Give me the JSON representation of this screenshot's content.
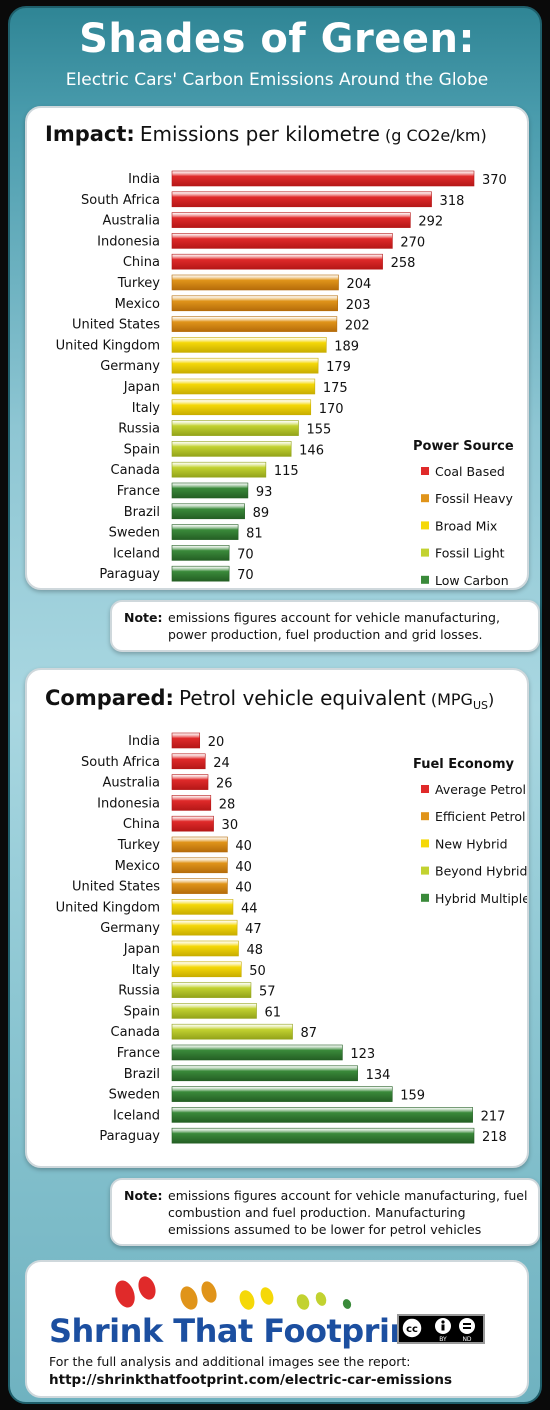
{
  "header": {
    "title": "Shades of Green:",
    "subtitle": "Electric Cars' Carbon Emissions Around the Globe"
  },
  "colors": {
    "red": "#e02a2a",
    "orange": "#e0941a",
    "yellow": "#f5d808",
    "lime": "#c2d230",
    "green": "#3a8a3a"
  },
  "chart_data": [
    {
      "type": "bar",
      "title_bold": "Impact:",
      "title": "Emissions per kilometre",
      "unit": "(g CO2e/km)",
      "categories": [
        "India",
        "South Africa",
        "Australia",
        "Indonesia",
        "China",
        "Turkey",
        "Mexico",
        "United States",
        "United Kingdom",
        "Germany",
        "Japan",
        "Italy",
        "Russia",
        "Spain",
        "Canada",
        "France",
        "Brazil",
        "Sweden",
        "Iceland",
        "Paraguay"
      ],
      "values": [
        370,
        318,
        292,
        270,
        258,
        204,
        203,
        202,
        189,
        179,
        175,
        170,
        155,
        146,
        115,
        93,
        89,
        81,
        70,
        70
      ],
      "groups": [
        "red",
        "red",
        "red",
        "red",
        "red",
        "orange",
        "orange",
        "orange",
        "yellow",
        "yellow",
        "yellow",
        "yellow",
        "lime",
        "lime",
        "lime",
        "green",
        "green",
        "green",
        "green",
        "green"
      ],
      "legend_title": "Power Source",
      "legend": [
        {
          "label": "Coal Based",
          "color": "red"
        },
        {
          "label": "Fossil Heavy",
          "color": "orange"
        },
        {
          "label": "Broad Mix",
          "color": "yellow"
        },
        {
          "label": "Fossil Light",
          "color": "lime"
        },
        {
          "label": "Low Carbon",
          "color": "green"
        }
      ],
      "xlim": [
        0,
        370
      ]
    },
    {
      "type": "bar",
      "title_bold": "Compared:",
      "title": "Petrol vehicle equivalent",
      "unit_main": "(MPG",
      "unit_sub": "US",
      "unit_end": ")",
      "categories": [
        "India",
        "South Africa",
        "Australia",
        "Indonesia",
        "China",
        "Turkey",
        "Mexico",
        "United States",
        "United Kingdom",
        "Germany",
        "Japan",
        "Italy",
        "Russia",
        "Spain",
        "Canada",
        "France",
        "Brazil",
        "Sweden",
        "Iceland",
        "Paraguay"
      ],
      "values": [
        20,
        24,
        26,
        28,
        30,
        40,
        40,
        40,
        44,
        47,
        48,
        50,
        57,
        61,
        87,
        123,
        134,
        159,
        217,
        218
      ],
      "groups": [
        "red",
        "red",
        "red",
        "red",
        "red",
        "orange",
        "orange",
        "orange",
        "yellow",
        "yellow",
        "yellow",
        "yellow",
        "lime",
        "lime",
        "lime",
        "green",
        "green",
        "green",
        "green",
        "green"
      ],
      "legend_title": "Fuel Economy",
      "legend": [
        {
          "label": "Average Petrol",
          "color": "red"
        },
        {
          "label": "Efficient Petrol",
          "color": "orange"
        },
        {
          "label": "New Hybrid",
          "color": "yellow"
        },
        {
          "label": "Beyond Hybrid",
          "color": "lime"
        },
        {
          "label": "Hybrid Multiples",
          "color": "green"
        }
      ],
      "xlim": [
        0,
        218
      ]
    }
  ],
  "notes": [
    {
      "label": "Note:",
      "text": "emissions figures account for vehicle manufacturing, power production, fuel production and grid losses."
    },
    {
      "label": "Note:",
      "text": "emissions figures account for vehicle manufacturing, fuel combustion and fuel production.  Manufacturing emissions assumed to be lower for petrol vehicles"
    }
  ],
  "footer": {
    "brand": "Shrink That Footprint",
    "line1": "For the full analysis and additional images see the report:",
    "url": "http://shrinkthatfootprint.com/electric-car-emissions",
    "license_by": "BY",
    "license_nd": "ND"
  }
}
